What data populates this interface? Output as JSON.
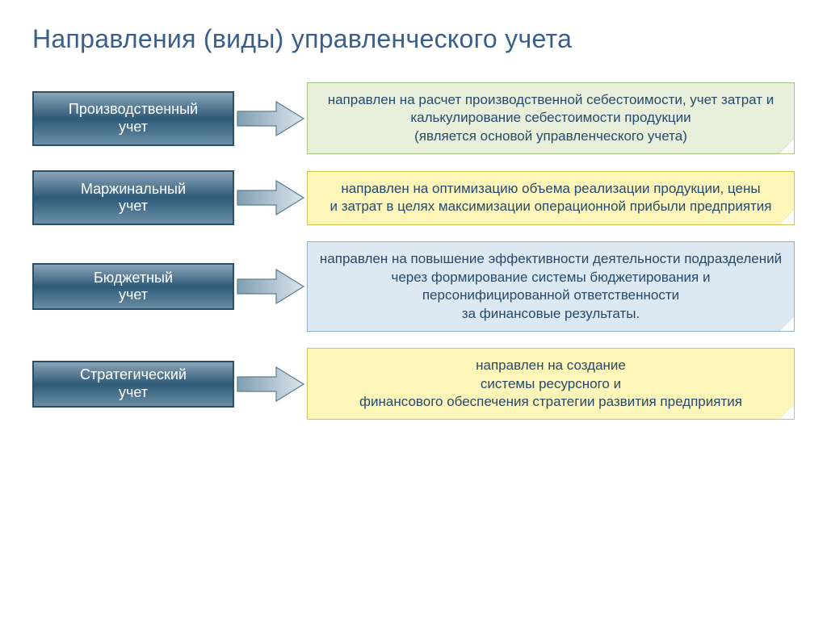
{
  "title": "Направления (виды) управленческого учета",
  "title_color": "#385e8a",
  "background_color": "#ffffff",
  "title_fontsize": 32,
  "left_box": {
    "gradient_top": "#8aa5b7",
    "gradient_mid": "#2e5a78",
    "gradient_bottom": "#6a8fa5",
    "border_color": "#2a4f69",
    "text_color": "#ffffff",
    "fontsize": 18
  },
  "arrow": {
    "gradient_left": "#7f9fb1",
    "gradient_right": "#dbe5eb",
    "stroke": "#5a7d93"
  },
  "right_box": {
    "fontsize": 17,
    "text_color": "#264a6b"
  },
  "rows": [
    {
      "label_line1": "Производственный",
      "label_line2": "учет",
      "desc": "направлен на расчет производственной себестоимости, учет затрат и калькулирование себестоимости продукции\n(является основой управленческого учета)",
      "desc_bg": "#e8f0dc",
      "desc_border": "#a9c47f"
    },
    {
      "label_line1": "Маржинальный",
      "label_line2": "учет",
      "desc": "направлен на оптимизацию объема реализации продукции, цены\nи затрат в целях максимизации операционной прибыли предприятия",
      "desc_bg": "#fdf6b8",
      "desc_border": "#cfc452"
    },
    {
      "label_line1": "Бюджетный",
      "label_line2": "учет",
      "desc": "направлен на повышение эффективности деятельности подразделений\nчерез формирование системы бюджетирования и персонифицированной ответственности\nза финансовые результаты.",
      "desc_bg": "#dce8f2",
      "desc_border": "#90b0cd"
    },
    {
      "label_line1": "Стратегический",
      "label_line2": "учет",
      "desc": "направлен на создание\nсистемы ресурсного и\nфинансового обеспечения стратегии развития предприятия",
      "desc_bg": "#fdf6b8",
      "desc_border": "#cfc452"
    }
  ]
}
